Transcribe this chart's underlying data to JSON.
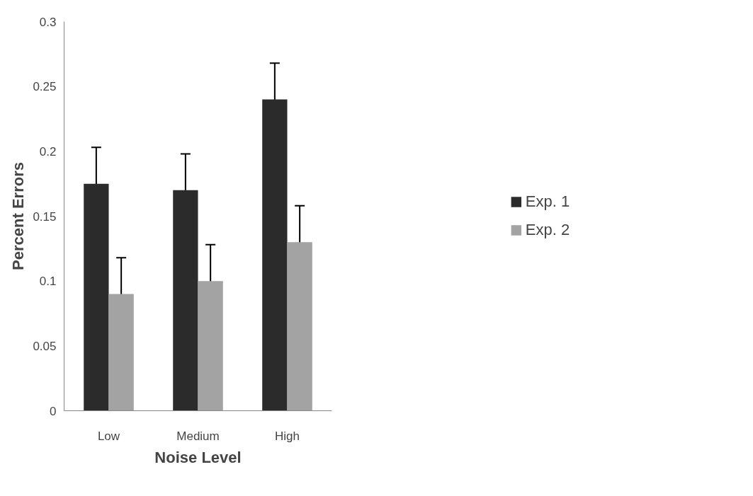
{
  "chart_data": {
    "type": "bar",
    "xlabel": "Noise Level",
    "ylabel": "Percent Errors",
    "categories": [
      "Low",
      "Medium",
      "High"
    ],
    "series": [
      {
        "name": "Exp. 1",
        "color": "#2b2b2b",
        "values": [
          0.175,
          0.17,
          0.24
        ],
        "errors": [
          0.028,
          0.028,
          0.028
        ]
      },
      {
        "name": "Exp. 2",
        "color": "#a3a3a3",
        "values": [
          0.09,
          0.1,
          0.13
        ],
        "errors": [
          0.028,
          0.028,
          0.028
        ]
      }
    ],
    "ylim": [
      0,
      0.3
    ],
    "yticks": [
      0,
      0.05,
      0.1,
      0.15,
      0.2,
      0.25,
      0.3
    ],
    "grid": false,
    "legend": "right"
  }
}
